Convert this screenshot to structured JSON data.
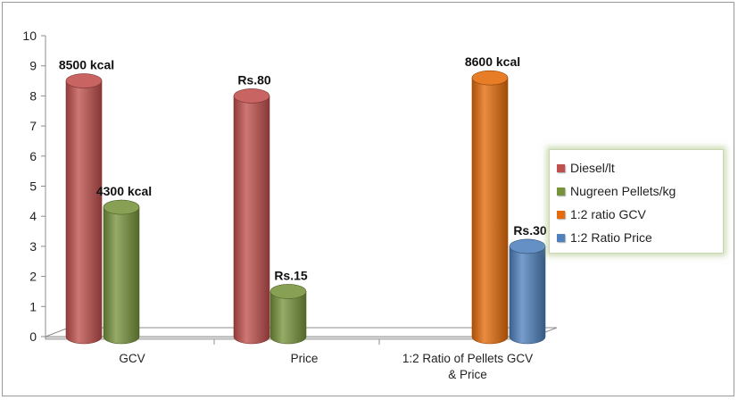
{
  "chart_data": {
    "type": "bar",
    "style": "3d-cylinder",
    "categories": [
      "GCV",
      "Price",
      "1:2 Ratio of Pellets GCV & Price"
    ],
    "category_lines": [
      [
        "GCV"
      ],
      [
        "Price"
      ],
      [
        "1:2 Ratio of Pellets GCV",
        "& Price"
      ]
    ],
    "ylim": [
      0,
      10
    ],
    "yticks": [
      0,
      1,
      2,
      3,
      4,
      5,
      6,
      7,
      8,
      9,
      10
    ],
    "grid": false,
    "legend_position": "right",
    "series": [
      {
        "name": "Diesel/lt",
        "color": "#c0504d",
        "values": [
          8.5,
          8.0,
          null
        ],
        "labels": [
          "8500 kcal",
          "Rs.80",
          ""
        ]
      },
      {
        "name": "Nugreen Pellets/kg",
        "color": "#77933c",
        "values": [
          4.3,
          1.5,
          null
        ],
        "labels": [
          "4300 kcal",
          "Rs.15",
          ""
        ]
      },
      {
        "name": "1:2 ratio GCV",
        "color": "#e46c0a",
        "values": [
          null,
          null,
          8.6
        ],
        "labels": [
          "",
          "",
          "8600 kcal"
        ]
      },
      {
        "name": "1:2 Ratio Price",
        "color": "#4f81bd",
        "values": [
          null,
          null,
          3.0
        ],
        "labels": [
          "",
          "",
          "Rs.30"
        ]
      }
    ]
  }
}
